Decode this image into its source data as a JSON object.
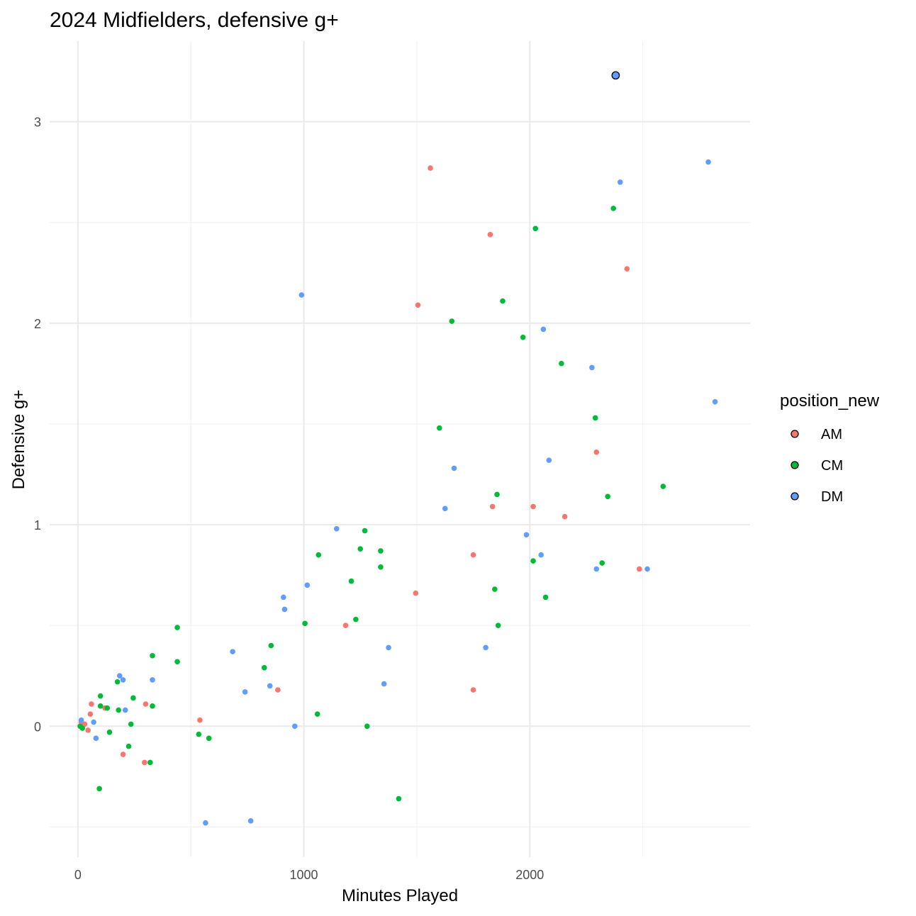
{
  "chart_data": {
    "type": "scatter",
    "title": "2024 Midfielders, defensive g+",
    "xlabel": "Minutes Played",
    "ylabel": "Defensive g+",
    "xlim": [
      -125,
      2975
    ],
    "ylim": [
      -0.65,
      3.4
    ],
    "x_ticks": [
      0,
      1000,
      2000
    ],
    "x_tick_labels": [
      "0",
      "1000",
      "2000"
    ],
    "x_minor_ticks": [
      500,
      1500,
      2500
    ],
    "y_ticks": [
      0,
      1,
      2,
      3
    ],
    "y_tick_labels": [
      "0",
      "1",
      "2",
      "3"
    ],
    "y_minor_ticks": [
      -0.5,
      0.5,
      1.5,
      2.5
    ],
    "grid": true,
    "legend": {
      "title": "position_new",
      "placement": "right"
    },
    "series": [
      {
        "name": "AM",
        "color": "#F8766D",
        "points": [
          [
            15,
            0.02
          ],
          [
            30,
            0.01
          ],
          [
            45,
            -0.02
          ],
          [
            55,
            0.06
          ],
          [
            60,
            0.11
          ],
          [
            120,
            0.09
          ],
          [
            200,
            -0.14
          ],
          [
            300,
            0.11
          ],
          [
            295,
            -0.18
          ],
          [
            540,
            0.03
          ],
          [
            885,
            0.18
          ],
          [
            1185,
            0.5
          ],
          [
            1495,
            0.66
          ],
          [
            1505,
            2.09
          ],
          [
            1560,
            2.77
          ],
          [
            1750,
            0.85
          ],
          [
            1750,
            0.18
          ],
          [
            1825,
            2.44
          ],
          [
            1835,
            1.09
          ],
          [
            2015,
            1.09
          ],
          [
            2155,
            1.04
          ],
          [
            2295,
            1.36
          ],
          [
            2430,
            2.27
          ],
          [
            2485,
            0.78
          ]
        ]
      },
      {
        "name": "CM",
        "color": "#00BA38",
        "points": [
          [
            10,
            0.0
          ],
          [
            20,
            -0.01
          ],
          [
            95,
            -0.31
          ],
          [
            100,
            0.15
          ],
          [
            100,
            0.1
          ],
          [
            130,
            0.09
          ],
          [
            140,
            -0.03
          ],
          [
            175,
            0.22
          ],
          [
            180,
            0.08
          ],
          [
            225,
            -0.1
          ],
          [
            235,
            0.01
          ],
          [
            245,
            0.14
          ],
          [
            320,
            -0.18
          ],
          [
            330,
            0.35
          ],
          [
            330,
            0.1
          ],
          [
            440,
            0.49
          ],
          [
            440,
            0.32
          ],
          [
            535,
            -0.04
          ],
          [
            580,
            -0.06
          ],
          [
            825,
            0.29
          ],
          [
            855,
            0.4
          ],
          [
            1005,
            0.51
          ],
          [
            1060,
            0.06
          ],
          [
            1065,
            0.85
          ],
          [
            1210,
            0.72
          ],
          [
            1230,
            0.53
          ],
          [
            1250,
            0.88
          ],
          [
            1270,
            0.97
          ],
          [
            1280,
            0.0
          ],
          [
            1340,
            0.87
          ],
          [
            1340,
            0.79
          ],
          [
            1420,
            -0.36
          ],
          [
            1600,
            1.48
          ],
          [
            1655,
            2.01
          ],
          [
            1845,
            0.68
          ],
          [
            1855,
            1.15
          ],
          [
            1860,
            0.5
          ],
          [
            1880,
            2.11
          ],
          [
            1970,
            1.93
          ],
          [
            2015,
            0.82
          ],
          [
            2025,
            2.47
          ],
          [
            2070,
            0.64
          ],
          [
            2140,
            1.8
          ],
          [
            2290,
            1.53
          ],
          [
            2320,
            0.81
          ],
          [
            2345,
            1.14
          ],
          [
            2370,
            2.57
          ],
          [
            2590,
            1.19
          ]
        ]
      },
      {
        "name": "DM",
        "color": "#619CFF",
        "points": [
          [
            15,
            0.03
          ],
          [
            70,
            0.02
          ],
          [
            80,
            -0.06
          ],
          [
            185,
            0.25
          ],
          [
            200,
            0.23
          ],
          [
            210,
            0.08
          ],
          [
            330,
            0.23
          ],
          [
            565,
            -0.48
          ],
          [
            685,
            0.37
          ],
          [
            740,
            0.17
          ],
          [
            765,
            -0.47
          ],
          [
            850,
            0.2
          ],
          [
            910,
            0.64
          ],
          [
            915,
            0.58
          ],
          [
            960,
            0.0
          ],
          [
            990,
            2.14
          ],
          [
            1015,
            0.7
          ],
          [
            1145,
            0.98
          ],
          [
            1355,
            0.21
          ],
          [
            1375,
            0.39
          ],
          [
            1625,
            1.08
          ],
          [
            1665,
            1.28
          ],
          [
            1805,
            0.39
          ],
          [
            1985,
            0.95
          ],
          [
            2050,
            0.85
          ],
          [
            2060,
            1.97
          ],
          [
            2085,
            1.32
          ],
          [
            2275,
            1.78
          ],
          [
            2295,
            0.78
          ],
          [
            2380,
            3.23
          ],
          [
            2400,
            2.7
          ],
          [
            2520,
            0.78
          ],
          [
            2790,
            2.8
          ],
          [
            2820,
            1.61
          ]
        ]
      }
    ]
  }
}
